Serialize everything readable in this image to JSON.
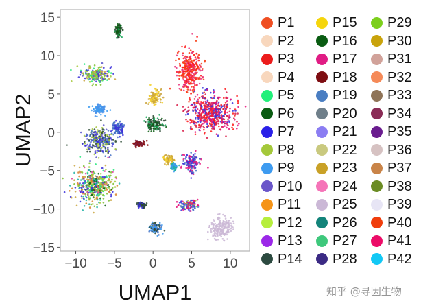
{
  "chart_data": {
    "type": "scatter",
    "xlabel": "UMAP1",
    "ylabel": "UMAP2",
    "xlim": [
      -12,
      12.5
    ],
    "ylim": [
      -15.5,
      16
    ],
    "xticks": [
      -10,
      -5,
      0,
      5,
      10
    ],
    "yticks": [
      15,
      10,
      5,
      0,
      -5,
      -10,
      -15
    ],
    "xtick_labels": [
      "−10",
      "−5",
      "0",
      "5",
      "10"
    ],
    "ytick_labels": [
      "15",
      "10",
      "5",
      "0",
      "−5",
      "−10",
      "−15"
    ],
    "grid": false,
    "legend_position": "right",
    "clusters": [
      {
        "name": "top-island",
        "x": -4.5,
        "y": 13.3,
        "rx": 0.5,
        "ry": 0.9,
        "colors": [
          "#0a5c12",
          "#2c4a34",
          "#17a85a"
        ]
      },
      {
        "name": "upper-left",
        "x": -7.5,
        "y": 7.5,
        "rx": 2.0,
        "ry": 1.2,
        "colors": [
          "#a4c83a",
          "#7cbf2c",
          "#3a2fd9",
          "#22e67a",
          "#c9a33c",
          "#5c57c9"
        ]
      },
      {
        "name": "cyan-blob",
        "x": -7.0,
        "y": 3.0,
        "rx": 1.0,
        "ry": 0.7,
        "colors": [
          "#3e9bf0",
          "#4d8fe6"
        ]
      },
      {
        "name": "left-middle",
        "x": -7.0,
        "y": -1.0,
        "rx": 2.3,
        "ry": 1.8,
        "colors": [
          "#3a2fd9",
          "#4472c4",
          "#5c57c9",
          "#2c4a34",
          "#a4c83a"
        ]
      },
      {
        "name": "bottom-left",
        "x": -7.5,
        "y": -7.0,
        "rx": 2.8,
        "ry": 2.4,
        "colors": [
          "#a4c83a",
          "#c9a33c",
          "#3a2fd9",
          "#22e67a",
          "#1fb1a5",
          "#e0409a",
          "#d8832c",
          "#0a5c12",
          "#7cbf2c"
        ]
      },
      {
        "name": "mid-left",
        "x": -4.5,
        "y": 0.5,
        "rx": 0.8,
        "ry": 0.9,
        "colors": [
          "#3a2fd9",
          "#4472c4"
        ]
      },
      {
        "name": "yellow",
        "x": 0.2,
        "y": 4.5,
        "rx": 0.8,
        "ry": 1.3,
        "colors": [
          "#f5d02a",
          "#c9a33c"
        ]
      },
      {
        "name": "dark-green-center",
        "x": 0.3,
        "y": 1.0,
        "rx": 1.2,
        "ry": 1.0,
        "colors": [
          "#0a5c12",
          "#2c4a34",
          "#17a85a"
        ]
      },
      {
        "name": "maroon",
        "x": -1.8,
        "y": -1.5,
        "rx": 0.9,
        "ry": 0.5,
        "colors": [
          "#8b1010",
          "#7a2040"
        ]
      },
      {
        "name": "yellow-small",
        "x": 2.0,
        "y": -3.5,
        "rx": 0.7,
        "ry": 0.6,
        "colors": [
          "#f5d02a",
          "#c9a33c"
        ]
      },
      {
        "name": "teal-small",
        "x": 2.7,
        "y": -4.5,
        "rx": 0.4,
        "ry": 0.5,
        "colors": [
          "#1fb1a5",
          "#3e9bf0"
        ]
      },
      {
        "name": "red-orange-top",
        "x": 4.8,
        "y": 8.0,
        "rx": 1.7,
        "ry": 3.0,
        "colors": [
          "#f73a0e",
          "#ff1a1a",
          "#e8307a"
        ]
      },
      {
        "name": "pink-red-large",
        "x": 7.5,
        "y": 2.5,
        "rx": 3.3,
        "ry": 2.6,
        "colors": [
          "#e8107a",
          "#ff1a1a",
          "#d91e4a",
          "#3a2fd9"
        ]
      },
      {
        "name": "right-middle",
        "x": 5.0,
        "y": -4.0,
        "rx": 1.1,
        "ry": 1.5,
        "colors": [
          "#3a2fd9",
          "#4472c4",
          "#e8107a"
        ]
      },
      {
        "name": "bottom-right",
        "x": 4.5,
        "y": -9.5,
        "rx": 1.5,
        "ry": 0.7,
        "colors": [
          "#4472c4",
          "#3a2fd9",
          "#e8107a",
          "#a4c83a"
        ]
      },
      {
        "name": "lilac",
        "x": 8.8,
        "y": -12.5,
        "rx": 1.6,
        "ry": 1.6,
        "colors": [
          "#cbb8d6"
        ]
      },
      {
        "name": "blue-bottom",
        "x": 0.3,
        "y": -12.5,
        "rx": 0.9,
        "ry": 0.9,
        "colors": [
          "#4472c4",
          "#3e9bf0",
          "#2c4a34"
        ]
      },
      {
        "name": "small-bottom",
        "x": -1.5,
        "y": -9.5,
        "rx": 0.6,
        "ry": 0.4,
        "colors": [
          "#2c4a34",
          "#3a2fd9"
        ]
      }
    ],
    "legend": [
      {
        "label": "P1",
        "color": "#ef4e22"
      },
      {
        "label": "P2",
        "color": "#f8d7bd"
      },
      {
        "label": "P3",
        "color": "#ec1c1c"
      },
      {
        "label": "P4",
        "color": "#f8d7bd"
      },
      {
        "label": "P5",
        "color": "#22f07a"
      },
      {
        "label": "P6",
        "color": "#0a5c12"
      },
      {
        "label": "P7",
        "color": "#2a20e8"
      },
      {
        "label": "P8",
        "color": "#a4c83a"
      },
      {
        "label": "P9",
        "color": "#3e9bf0"
      },
      {
        "label": "P10",
        "color": "#6a56c9"
      },
      {
        "label": "P11",
        "color": "#f59418"
      },
      {
        "label": "P12",
        "color": "#b6ee3d"
      },
      {
        "label": "P13",
        "color": "#9b28e8"
      },
      {
        "label": "P14",
        "color": "#2c4a40"
      },
      {
        "label": "P15",
        "color": "#f5d50c"
      },
      {
        "label": "P16",
        "color": "#0a5c12"
      },
      {
        "label": "P17",
        "color": "#e01c84"
      },
      {
        "label": "P18",
        "color": "#7e0d12"
      },
      {
        "label": "P19",
        "color": "#4a7ec2"
      },
      {
        "label": "P20",
        "color": "#6f7f8a"
      },
      {
        "label": "P21",
        "color": "#8b7df2"
      },
      {
        "label": "P22",
        "color": "#c9c97f"
      },
      {
        "label": "P23",
        "color": "#c9a127"
      },
      {
        "label": "P24",
        "color": "#f574b8"
      },
      {
        "label": "P25",
        "color": "#cbb8d6"
      },
      {
        "label": "P26",
        "color": "#13847a"
      },
      {
        "label": "P27",
        "color": "#3ec87c"
      },
      {
        "label": "P28",
        "color": "#3b2a84"
      },
      {
        "label": "P29",
        "color": "#7ccf1c"
      },
      {
        "label": "P30",
        "color": "#c9a30c"
      },
      {
        "label": "P31",
        "color": "#d1a29a"
      },
      {
        "label": "P32",
        "color": "#f58a58"
      },
      {
        "label": "P33",
        "color": "#8f7458"
      },
      {
        "label": "P34",
        "color": "#8a2c56"
      },
      {
        "label": "P35",
        "color": "#6a1c8f"
      },
      {
        "label": "P36",
        "color": "#d6c2c2"
      },
      {
        "label": "P37",
        "color": "#c98448"
      },
      {
        "label": "P38",
        "color": "#6b8c24"
      },
      {
        "label": "P39",
        "color": "#e7e5f5"
      },
      {
        "label": "P40",
        "color": "#f03d0c"
      },
      {
        "label": "P41",
        "color": "#ec0c68"
      },
      {
        "label": "P42",
        "color": "#12c8f5"
      }
    ]
  },
  "watermark": "知乎 @寻因生物"
}
